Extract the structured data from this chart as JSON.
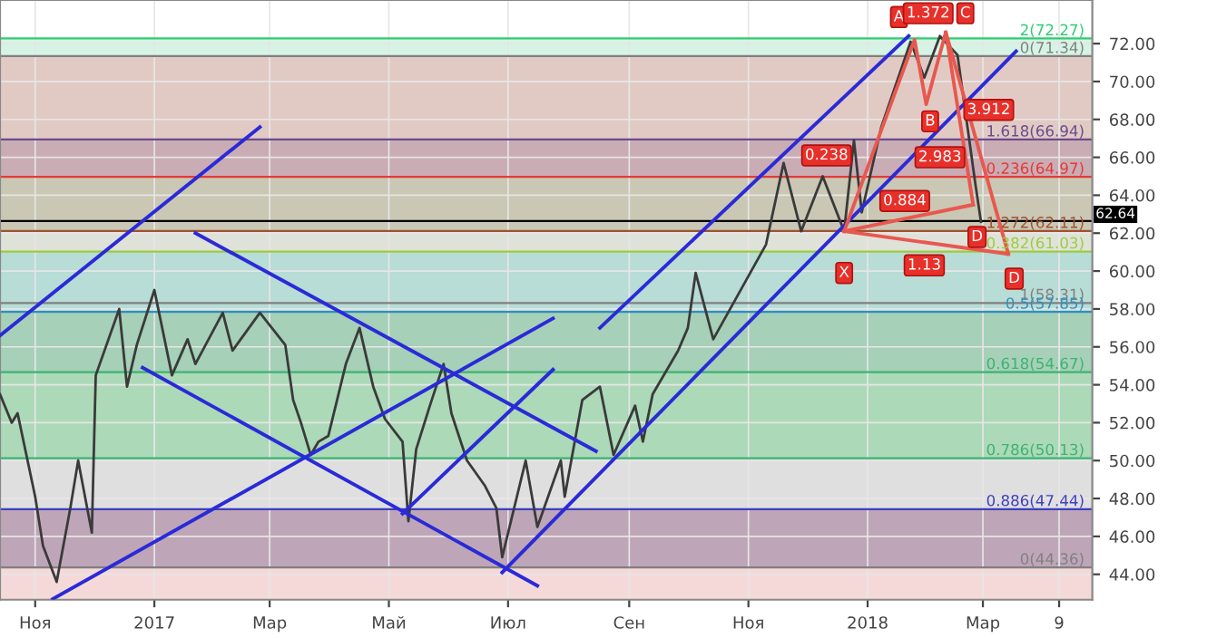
{
  "chart_data": {
    "type": "line",
    "xlim": [
      "2016-10-14",
      "2018-04-26"
    ],
    "ylim": [
      42.66,
      74.3
    ],
    "xticks": [
      {
        "value": "2016-11-01",
        "label": "Ноя"
      },
      {
        "value": "2017-01-01",
        "label": "2017"
      },
      {
        "value": "2017-03-01",
        "label": "Мар"
      },
      {
        "value": "2017-05-01",
        "label": "Май"
      },
      {
        "value": "2017-07-01",
        "label": "Июл"
      },
      {
        "value": "2017-09-01",
        "label": "Сен"
      },
      {
        "value": "2017-11-01",
        "label": "Ноя"
      },
      {
        "value": "2018-01-01",
        "label": "2018"
      },
      {
        "value": "2018-03-01",
        "label": "Мар"
      },
      {
        "value": "2018-04-09",
        "label": "9"
      }
    ],
    "yticks": [
      {
        "value": 44,
        "label": "44.00"
      },
      {
        "value": 46,
        "label": "46.00"
      },
      {
        "value": 48,
        "label": "48.00"
      },
      {
        "value": 50,
        "label": "50.00"
      },
      {
        "value": 52,
        "label": "52.00"
      },
      {
        "value": 54,
        "label": "54.00"
      },
      {
        "value": 56,
        "label": "56.00"
      },
      {
        "value": 58,
        "label": "58.00"
      },
      {
        "value": 60,
        "label": "60.00"
      },
      {
        "value": 62,
        "label": "62.00"
      },
      {
        "value": 64,
        "label": "64.00"
      },
      {
        "value": 66,
        "label": "66.00"
      },
      {
        "value": 68,
        "label": "68.00"
      },
      {
        "value": 70,
        "label": "70.00"
      },
      {
        "value": 72,
        "label": "72.00"
      }
    ],
    "grid": true,
    "bands": [
      {
        "axis": "y",
        "from": 71.34,
        "to": 72.27,
        "color": "#c8f0dc"
      },
      {
        "axis": "y",
        "from": 66.94,
        "to": 71.34,
        "color": "#d8b8b0"
      },
      {
        "axis": "y",
        "from": 64.97,
        "to": 66.94,
        "color": "#b8909c"
      },
      {
        "axis": "y",
        "from": 62.11,
        "to": 64.97,
        "color": "#b8b49c"
      },
      {
        "axis": "y",
        "from": 61.03,
        "to": 62.11,
        "color": "#d4d8cc"
      },
      {
        "axis": "y",
        "from": 57.85,
        "to": 61.03,
        "color": "#a0d0c8"
      },
      {
        "axis": "y",
        "from": 54.67,
        "to": 57.85,
        "color": "#88c0a0"
      },
      {
        "axis": "y",
        "from": 50.13,
        "to": 54.67,
        "color": "#90cca0"
      },
      {
        "axis": "y",
        "from": 47.44,
        "to": 50.13,
        "color": "#d4d4d4"
      },
      {
        "axis": "y",
        "from": 44.36,
        "to": 47.44,
        "color": "#a888a0"
      },
      {
        "axis": "y",
        "from": 42.66,
        "to": 44.36,
        "color": "#f2cccc"
      }
    ],
    "ref_lines": [
      {
        "axis": "y",
        "value": 72.27,
        "label": "2(72.27)",
        "color": "#2ecc71"
      },
      {
        "axis": "y",
        "value": 71.34,
        "label": "0(71.34)",
        "color": "#808080"
      },
      {
        "axis": "y",
        "value": 66.94,
        "label": "1.618(66.94)",
        "color": "#6a4c8c"
      },
      {
        "axis": "y",
        "value": 64.97,
        "label": "0.236(64.97)",
        "color": "#e53935"
      },
      {
        "axis": "y",
        "value": 62.11,
        "label": "1.272(62.11)",
        "color": "#a0522d"
      },
      {
        "axis": "y",
        "value": 61.03,
        "label": "0.382(61.03)",
        "color": "#9ccc3c"
      },
      {
        "axis": "y",
        "value": 58.31,
        "label": "1(58.31)",
        "color": "#808080"
      },
      {
        "axis": "y",
        "value": 57.85,
        "label": "0.5(57.85)",
        "color": "#2f8fc0"
      },
      {
        "axis": "y",
        "value": 54.67,
        "label": "0.618(54.67)",
        "color": "#3cb371"
      },
      {
        "axis": "y",
        "value": 50.13,
        "label": "0.786(50.13)",
        "color": "#3cb371"
      },
      {
        "axis": "y",
        "value": 47.44,
        "label": "0.886(47.44)",
        "color": "#3f3fbf"
      },
      {
        "axis": "y",
        "value": 44.36,
        "label": "0(44.36)",
        "color": "#808080"
      },
      {
        "axis": "y",
        "value": 62.64,
        "label": "62.64",
        "color": "#000000"
      }
    ],
    "annotations": [
      {
        "text": "X",
        "x": "2017-12-20",
        "y": 59.9
      },
      {
        "text": "A",
        "x": "2018-01-17",
        "y": 73.4
      },
      {
        "text": "B",
        "x": "2018-02-02",
        "y": 67.9
      },
      {
        "text": "C",
        "x": "2018-02-20",
        "y": 73.6
      },
      {
        "text": "D",
        "x": "2018-02-26",
        "y": 61.8
      },
      {
        "text": "D",
        "x": "2018-03-17",
        "y": 59.6
      },
      {
        "text": "0.238",
        "x": "2017-12-11",
        "y": 66.1
      },
      {
        "text": "1.372",
        "x": "2018-02-01",
        "y": 73.6
      },
      {
        "text": "2.983",
        "x": "2018-02-07",
        "y": 66.0
      },
      {
        "text": "3.912",
        "x": "2018-03-04",
        "y": 68.5
      },
      {
        "text": "0.884",
        "x": "2018-01-20",
        "y": 63.7
      },
      {
        "text": "1.13",
        "x": "2018-01-30",
        "y": 60.3
      }
    ],
    "series": [
      {
        "color": "#3a3a3a",
        "x": [
          "2016-10-14",
          "2016-10-20",
          "2016-10-23",
          "2016-11-01",
          "2016-11-05",
          "2016-11-12",
          "2016-11-19",
          "2016-11-23",
          "2016-11-30",
          "2016-12-02",
          "2016-12-14",
          "2016-12-18",
          "2016-12-23",
          "2017-01-01",
          "2017-01-10",
          "2017-01-18",
          "2017-01-22",
          "2017-02-05",
          "2017-02-10",
          "2017-02-24",
          "2017-03-09",
          "2017-03-13",
          "2017-03-17",
          "2017-03-22",
          "2017-03-26",
          "2017-03-31",
          "2017-04-09",
          "2017-04-16",
          "2017-04-23",
          "2017-04-29",
          "2017-05-08",
          "2017-05-11",
          "2017-05-15",
          "2017-05-22",
          "2017-05-29",
          "2017-06-02",
          "2017-06-10",
          "2017-06-19",
          "2017-06-25",
          "2017-06-28",
          "2017-07-10",
          "2017-07-16",
          "2017-07-28",
          "2017-07-30",
          "2017-08-08",
          "2017-08-17",
          "2017-08-24",
          "2017-09-04",
          "2017-09-08",
          "2017-09-13",
          "2017-09-26",
          "2017-10-01",
          "2017-10-05",
          "2017-10-14",
          "2017-11-10",
          "2017-11-19",
          "2017-11-28",
          "2017-12-09",
          "2017-12-20",
          "2017-12-25",
          "2017-12-29",
          "2018-01-08",
          "2018-01-23",
          "2018-01-30",
          "2018-02-07",
          "2018-02-16",
          "2018-02-25",
          "2018-02-28"
        ],
        "values": [
          53.5,
          52.0,
          52.5,
          48.1,
          45.5,
          43.6,
          47.5,
          50.0,
          46.2,
          54.5,
          58.0,
          53.9,
          56.1,
          59.0,
          54.5,
          56.4,
          55.1,
          57.8,
          55.8,
          57.8,
          56.1,
          53.2,
          52.0,
          50.3,
          51.0,
          51.3,
          55.1,
          57.0,
          53.9,
          52.2,
          51.0,
          46.8,
          50.6,
          52.9,
          55.1,
          52.5,
          50.0,
          48.7,
          47.5,
          44.9,
          50.0,
          46.5,
          50.0,
          48.1,
          53.2,
          53.9,
          50.3,
          52.9,
          51.0,
          53.5,
          55.8,
          57.0,
          59.9,
          56.4,
          61.4,
          65.7,
          62.1,
          65.0,
          62.1,
          66.9,
          63.1,
          67.6,
          72.1,
          70.2,
          72.4,
          71.4,
          64.7,
          62.6
        ]
      },
      {
        "color": "#2a2ad8",
        "x": [
          "2016-10-14",
          "2017-02-24"
        ],
        "values": [
          56.6,
          67.6
        ]
      },
      {
        "color": "#2a2ad8",
        "x": [
          "2016-11-10",
          "2017-07-24"
        ],
        "values": [
          42.7,
          57.5
        ]
      },
      {
        "color": "#2a2ad8",
        "x": [
          "2017-01-22",
          "2017-08-15"
        ],
        "values": [
          62.0,
          50.5
        ]
      },
      {
        "color": "#2a2ad8",
        "x": [
          "2016-12-26",
          "2017-07-16"
        ],
        "values": [
          54.9,
          43.4
        ]
      },
      {
        "color": "#2a2ad8",
        "x": [
          "2017-05-08",
          "2017-07-24"
        ],
        "values": [
          47.2,
          54.8
        ]
      },
      {
        "color": "#2a2ad8",
        "x": [
          "2017-06-28",
          "2018-03-18"
        ],
        "values": [
          44.1,
          71.6
        ]
      },
      {
        "color": "#2a2ad8",
        "x": [
          "2017-08-17",
          "2018-01-22"
        ],
        "values": [
          57.0,
          72.4
        ]
      },
      {
        "color": "#e8584f",
        "x": [
          "2017-12-20",
          "2018-01-25",
          "2018-01-31",
          "2018-02-10",
          "2018-02-24"
        ],
        "values": [
          62.1,
          72.2,
          68.8,
          72.6,
          63.5
        ]
      },
      {
        "color": "#e8584f",
        "x": [
          "2017-12-20",
          "2018-02-24"
        ],
        "values": [
          62.1,
          63.5
        ]
      },
      {
        "color": "#e8584f",
        "x": [
          "2017-12-20",
          "2018-03-14"
        ],
        "values": [
          62.1,
          60.9
        ]
      },
      {
        "color": "#e8584f",
        "x": [
          "2018-02-10",
          "2018-03-14"
        ],
        "values": [
          72.6,
          60.9
        ]
      }
    ]
  }
}
